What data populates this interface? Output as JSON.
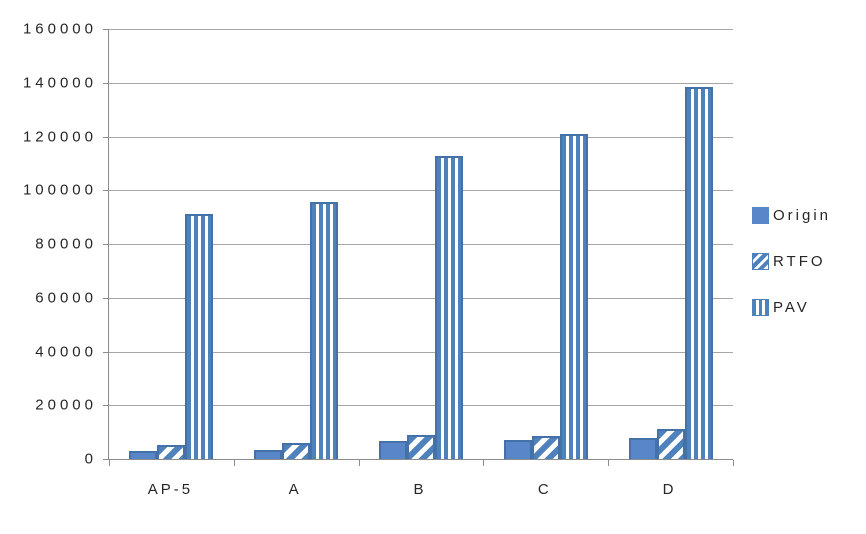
{
  "chart_data": {
    "type": "bar",
    "title": "",
    "categories": [
      "AP-5",
      "A",
      "B",
      "C",
      "D"
    ],
    "series": [
      {
        "name": "Origin",
        "pattern": "solid",
        "values": [
          3000,
          3500,
          6800,
          7000,
          8000
        ]
      },
      {
        "name": "RTFO",
        "pattern": "diagonal-stripes",
        "values": [
          5200,
          5900,
          9000,
          8500,
          11000
        ]
      },
      {
        "name": "PAV",
        "pattern": "vertical-stripes",
        "values": [
          91300,
          95800,
          112700,
          121000,
          138500
        ]
      }
    ],
    "ylim": [
      0,
      160000
    ],
    "yticks": [
      0,
      20000,
      40000,
      60000,
      80000,
      100000,
      120000,
      140000,
      160000
    ],
    "xlabel": "",
    "ylabel": "",
    "grid": true,
    "legend_position": "right",
    "colors": {
      "bar_fill": "#5886c8",
      "bar_border": "#4472a8",
      "stripe": "#4f81bd",
      "gridline": "#a6a6a6",
      "axis": "#8c8c8c",
      "text": "#262626"
    }
  }
}
